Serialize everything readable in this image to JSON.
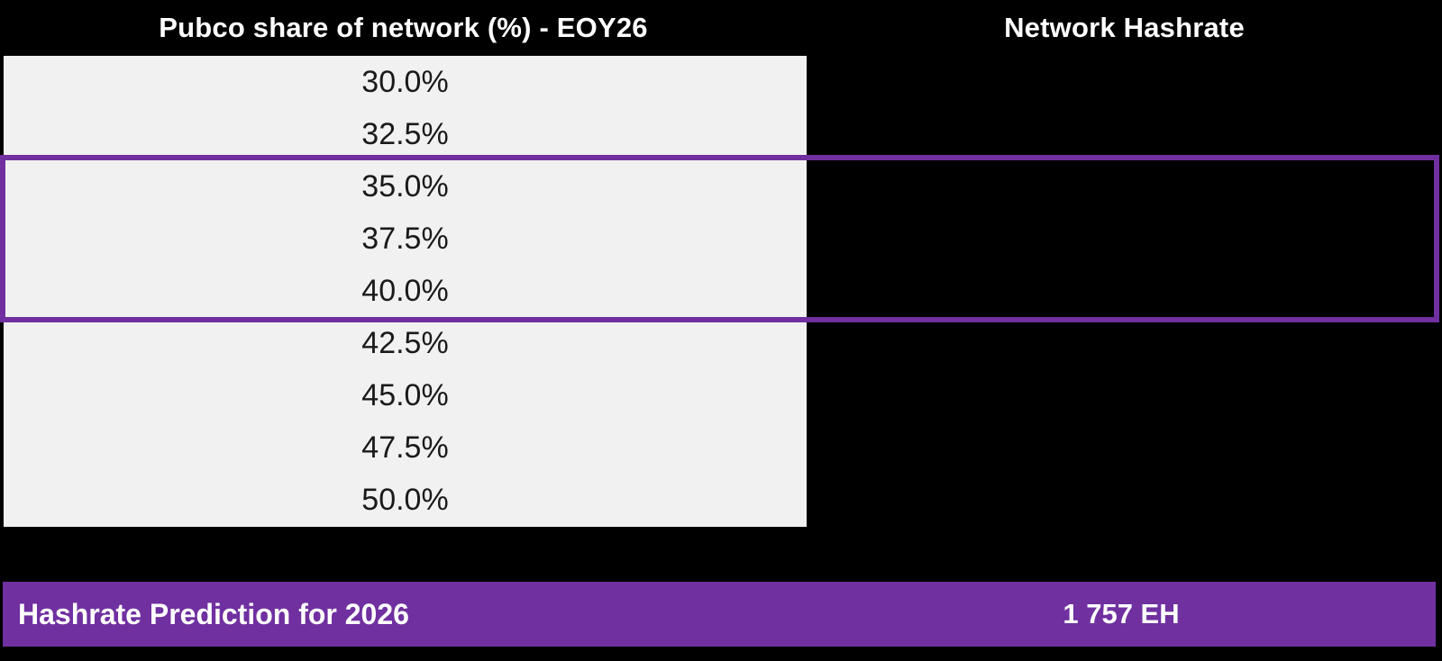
{
  "colors": {
    "canvas_bg": "#000000",
    "accent_purple": "#7030A0",
    "table_bg": "#F1F1F1",
    "header_text": "#FFFFFF",
    "cell_text": "#1A1A1A"
  },
  "headers": {
    "left": "Pubco share of network (%) - EOY26",
    "right": "Network Hashrate"
  },
  "table": {
    "rows": [
      {
        "share": "30.0%",
        "hashrate": "",
        "highlighted": false
      },
      {
        "share": "32.5%",
        "hashrate": "",
        "highlighted": false
      },
      {
        "share": "35.0%",
        "hashrate": "",
        "highlighted": true
      },
      {
        "share": "37.5%",
        "hashrate": "",
        "highlighted": true
      },
      {
        "share": "40.0%",
        "hashrate": "",
        "highlighted": true
      },
      {
        "share": "42.5%",
        "hashrate": "",
        "highlighted": false
      },
      {
        "share": "45.0%",
        "hashrate": "",
        "highlighted": false
      },
      {
        "share": "47.5%",
        "hashrate": "",
        "highlighted": false
      },
      {
        "share": "50.0%",
        "hashrate": "",
        "highlighted": false
      }
    ]
  },
  "highlight": {
    "rows": [
      "35.0%",
      "37.5%",
      "40.0%"
    ]
  },
  "footer": {
    "label": "Hashrate Prediction for 2026",
    "value": "1 757 EH"
  }
}
